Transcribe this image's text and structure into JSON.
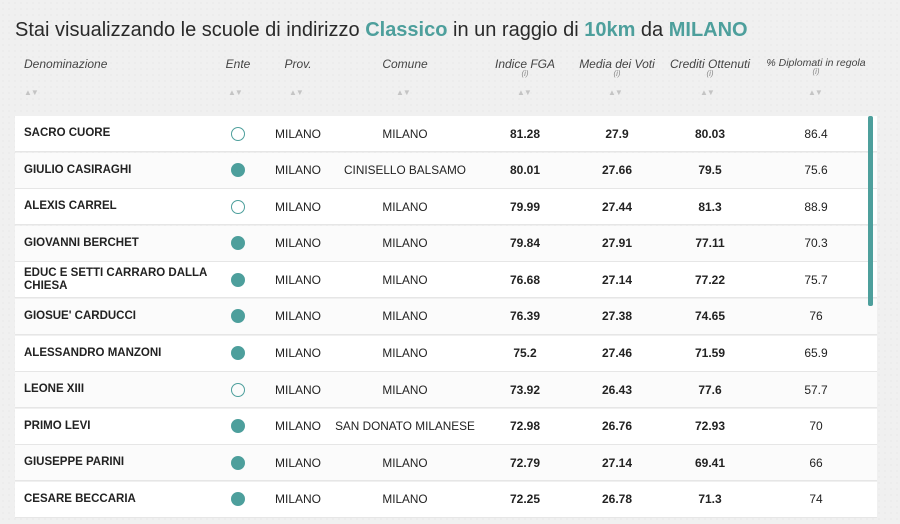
{
  "title": {
    "prefix": "Stai visualizzando le scuole di indirizzo ",
    "indirizzo": "Classico",
    "mid": " in un raggio di ",
    "raggio": "10km",
    "da": " da ",
    "citta": "MILANO"
  },
  "columns": {
    "denominazione": "Denominazione",
    "ente": "Ente",
    "prov": "Prov.",
    "comune": "Comune",
    "fga": "Indice FGA",
    "voti": "Media dei Voti",
    "crediti": "Crediti Ottenuti",
    "diplomati": "% Diplomati in regola",
    "info": "(i)",
    "sort": "▲▼"
  },
  "accent_color": "#4d9f9c",
  "rows": [
    {
      "name": "SACRO CUORE",
      "ente": "hollow",
      "prov": "MILANO",
      "comune": "MILANO",
      "fga": "81.28",
      "voti": "27.9",
      "crediti": "80.03",
      "dipl": "86.4"
    },
    {
      "name": "GIULIO CASIRAGHI",
      "ente": "filled",
      "prov": "MILANO",
      "comune": "CINISELLO BALSAMO",
      "fga": "80.01",
      "voti": "27.66",
      "crediti": "79.5",
      "dipl": "75.6"
    },
    {
      "name": "ALEXIS CARREL",
      "ente": "hollow",
      "prov": "MILANO",
      "comune": "MILANO",
      "fga": "79.99",
      "voti": "27.44",
      "crediti": "81.3",
      "dipl": "88.9"
    },
    {
      "name": "GIOVANNI BERCHET",
      "ente": "filled",
      "prov": "MILANO",
      "comune": "MILANO",
      "fga": "79.84",
      "voti": "27.91",
      "crediti": "77.11",
      "dipl": "70.3"
    },
    {
      "name": "EDUC E SETTI CARRARO DALLA CHIESA",
      "ente": "filled",
      "prov": "MILANO",
      "comune": "MILANO",
      "fga": "76.68",
      "voti": "27.14",
      "crediti": "77.22",
      "dipl": "75.7"
    },
    {
      "name": "GIOSUE' CARDUCCI",
      "ente": "filled",
      "prov": "MILANO",
      "comune": "MILANO",
      "fga": "76.39",
      "voti": "27.38",
      "crediti": "74.65",
      "dipl": "76"
    },
    {
      "name": "ALESSANDRO MANZONI",
      "ente": "filled",
      "prov": "MILANO",
      "comune": "MILANO",
      "fga": "75.2",
      "voti": "27.46",
      "crediti": "71.59",
      "dipl": "65.9"
    },
    {
      "name": "LEONE XIII",
      "ente": "hollow",
      "prov": "MILANO",
      "comune": "MILANO",
      "fga": "73.92",
      "voti": "26.43",
      "crediti": "77.6",
      "dipl": "57.7"
    },
    {
      "name": "PRIMO LEVI",
      "ente": "filled",
      "prov": "MILANO",
      "comune": "SAN DONATO MILANESE",
      "fga": "72.98",
      "voti": "26.76",
      "crediti": "72.93",
      "dipl": "70"
    },
    {
      "name": "GIUSEPPE PARINI",
      "ente": "filled",
      "prov": "MILANO",
      "comune": "MILANO",
      "fga": "72.79",
      "voti": "27.14",
      "crediti": "69.41",
      "dipl": "66"
    },
    {
      "name": "CESARE BECCARIA",
      "ente": "filled",
      "prov": "MILANO",
      "comune": "MILANO",
      "fga": "72.25",
      "voti": "26.78",
      "crediti": "71.3",
      "dipl": "74"
    }
  ]
}
